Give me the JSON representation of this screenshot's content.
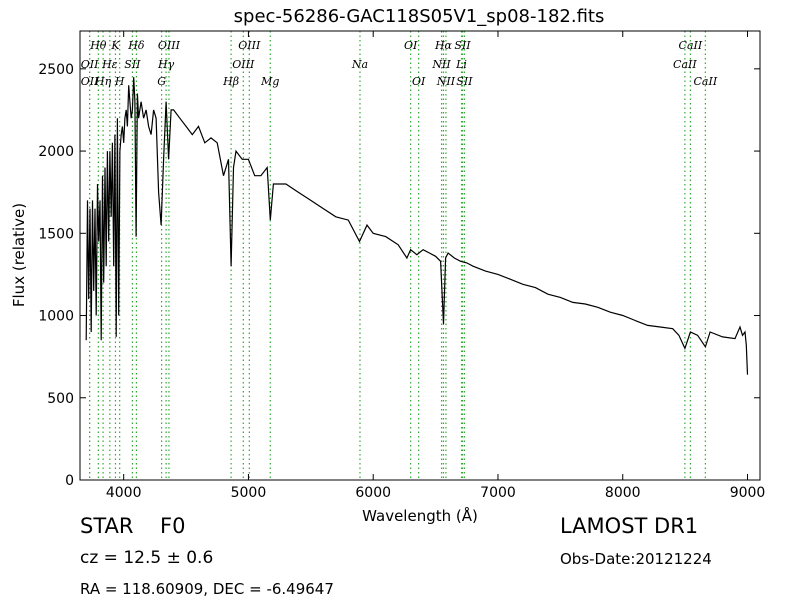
{
  "chart_data": {
    "type": "line",
    "title": "spec-56286-GAC118S05V1_sp08-182.fits",
    "xlabel": "Wavelength (Å)",
    "ylabel": "Flux (relative)",
    "xlim": [
      3650,
      9100
    ],
    "ylim": [
      0,
      2730
    ],
    "xticks": [
      4000,
      5000,
      6000,
      7000,
      8000,
      9000
    ],
    "yticks": [
      0,
      500,
      1000,
      1500,
      2000,
      2500
    ],
    "grid": false,
    "line_color": "#000000",
    "marker_color": "#33aa33",
    "series": [
      {
        "x": [
          3700,
          3710,
          3720,
          3730,
          3740,
          3750,
          3760,
          3770,
          3780,
          3790,
          3800,
          3810,
          3820,
          3830,
          3840,
          3850,
          3860,
          3870,
          3880,
          3890,
          3900,
          3910,
          3920,
          3930,
          3940,
          3950,
          3960,
          3970,
          3980,
          3990,
          4000,
          4010,
          4020,
          4030,
          4040,
          4050,
          4060,
          4070,
          4080,
          4090,
          4100,
          4110,
          4120,
          4140,
          4160,
          4180,
          4200,
          4220,
          4240,
          4260,
          4280,
          4300,
          4320,
          4340,
          4360,
          4380,
          4400,
          4450,
          4500,
          4550,
          4600,
          4650,
          4700,
          4750,
          4800,
          4840,
          4861,
          4880,
          4900,
          4950,
          5000,
          5050,
          5100,
          5150,
          5175,
          5200,
          5300,
          5400,
          5500,
          5600,
          5700,
          5800,
          5890,
          5950,
          6000,
          6100,
          6200,
          6270,
          6300,
          6350,
          6400,
          6450,
          6500,
          6540,
          6563,
          6580,
          6600,
          6650,
          6700,
          6750,
          6800,
          6900,
          7000,
          7100,
          7200,
          7300,
          7400,
          7500,
          7600,
          7700,
          7800,
          7900,
          8000,
          8100,
          8200,
          8300,
          8400,
          8450,
          8498,
          8542,
          8600,
          8662,
          8700,
          8800,
          8900,
          8940,
          8960,
          8980,
          8990,
          9000
        ],
        "y": [
          850,
          1700,
          1100,
          1650,
          900,
          1700,
          1150,
          1650,
          1000,
          1800,
          1450,
          1700,
          850,
          1850,
          1200,
          1900,
          1300,
          2000,
          1450,
          2000,
          1600,
          2050,
          1300,
          2100,
          870,
          2200,
          1000,
          2000,
          2100,
          2150,
          2050,
          2200,
          2250,
          2150,
          2400,
          2300,
          2200,
          2250,
          2450,
          2300,
          1480,
          2350,
          2200,
          2300,
          2200,
          2250,
          2150,
          2100,
          2250,
          2200,
          1750,
          1550,
          1950,
          2300,
          1950,
          2250,
          2250,
          2200,
          2150,
          2100,
          2150,
          2050,
          2080,
          2050,
          1850,
          1950,
          1300,
          1900,
          2000,
          1950,
          1950,
          1850,
          1850,
          1900,
          1580,
          1800,
          1800,
          1750,
          1700,
          1650,
          1600,
          1580,
          1450,
          1550,
          1500,
          1480,
          1430,
          1350,
          1400,
          1370,
          1400,
          1380,
          1360,
          1330,
          950,
          1350,
          1380,
          1350,
          1330,
          1320,
          1300,
          1270,
          1250,
          1220,
          1190,
          1170,
          1130,
          1110,
          1080,
          1070,
          1050,
          1020,
          1000,
          970,
          940,
          930,
          920,
          880,
          800,
          900,
          880,
          810,
          900,
          870,
          860,
          930,
          880,
          900,
          820,
          640
        ]
      }
    ],
    "spectral_lines": [
      {
        "label": "Hθ",
        "x": 3797,
        "row": 1
      },
      {
        "label": "OII",
        "x": 3727,
        "row": 2
      },
      {
        "label": "OII",
        "x": 3727,
        "row": 3
      },
      {
        "label": "Hη",
        "x": 3835,
        "row": 3
      },
      {
        "label": "K",
        "x": 3934,
        "row": 1
      },
      {
        "label": "Hε",
        "x": 3889,
        "row": 2
      },
      {
        "label": "SII",
        "x": 4070,
        "row": 2
      },
      {
        "label": "H",
        "x": 3968,
        "row": 3
      },
      {
        "label": "Hδ",
        "x": 4102,
        "row": 1
      },
      {
        "label": "OIII",
        "x": 4363,
        "row": 1
      },
      {
        "label": "Hγ",
        "x": 4340,
        "row": 2
      },
      {
        "label": "G",
        "x": 4304,
        "row": 3
      },
      {
        "label": "OIII",
        "x": 5007,
        "row": 1
      },
      {
        "label": "OIII",
        "x": 4959,
        "row": 2
      },
      {
        "label": "Hβ",
        "x": 4861,
        "row": 3
      },
      {
        "label": "Mg",
        "x": 5175,
        "row": 3
      },
      {
        "label": "Na",
        "x": 5894,
        "row": 2
      },
      {
        "label": "OI",
        "x": 6300,
        "row": 1
      },
      {
        "label": "OI",
        "x": 6364,
        "row": 3
      },
      {
        "label": "Hα",
        "x": 6563,
        "row": 1
      },
      {
        "label": "SII",
        "x": 6716,
        "row": 1
      },
      {
        "label": "NII",
        "x": 6548,
        "row": 2
      },
      {
        "label": "Li",
        "x": 6708,
        "row": 2
      },
      {
        "label": "NII",
        "x": 6583,
        "row": 3
      },
      {
        "label": "SII",
        "x": 6731,
        "row": 3
      },
      {
        "label": "CaII",
        "x": 8542,
        "row": 1
      },
      {
        "label": "CaII",
        "x": 8498,
        "row": 2
      },
      {
        "label": "CaII",
        "x": 8662,
        "row": 3
      }
    ]
  },
  "info": {
    "class_label": "STAR",
    "subclass": "F0",
    "cz": "cz = 12.5 ± 0.6",
    "coords": "RA = 118.60909, DEC = -6.49647",
    "survey": "LAMOST DR1",
    "obs_date": "Obs-Date:20121224"
  }
}
